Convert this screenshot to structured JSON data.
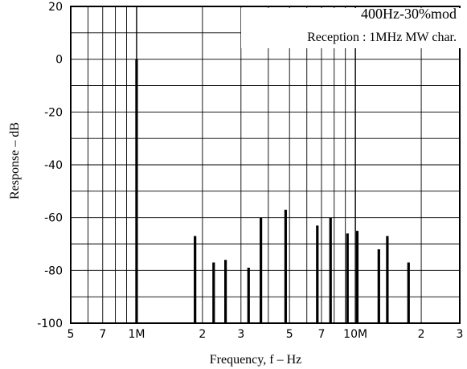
{
  "chart_data": {
    "type": "bar",
    "x_scale": "log",
    "xlabel": "Frequency, f  –  Hz",
    "ylabel": "Response  –  dB",
    "xlim": [
      500000,
      30000000
    ],
    "ylim": [
      -100,
      20
    ],
    "grid": true,
    "x_tick_labels": [
      {
        "x": 500000,
        "label": "5"
      },
      {
        "x": 700000,
        "label": "7"
      },
      {
        "x": 1000000,
        "label": "1M"
      },
      {
        "x": 2000000,
        "label": "2"
      },
      {
        "x": 3000000,
        "label": "3"
      },
      {
        "x": 5000000,
        "label": "5"
      },
      {
        "x": 7000000,
        "label": "7"
      },
      {
        "x": 10000000,
        "label": "10M"
      },
      {
        "x": 20000000,
        "label": "2"
      },
      {
        "x": 30000000,
        "label": "3"
      }
    ],
    "y_ticks": [
      20,
      0,
      -20,
      -40,
      -60,
      -80,
      -100
    ],
    "annotations": [
      "400Hz-30%mod",
      "Reception : 1MHz MW char."
    ],
    "series": [
      {
        "points": [
          {
            "x": 1000000,
            "y": 0
          },
          {
            "x": 1850000,
            "y": -67
          },
          {
            "x": 2250000,
            "y": -77
          },
          {
            "x": 2550000,
            "y": -76
          },
          {
            "x": 3250000,
            "y": -79
          },
          {
            "x": 3700000,
            "y": -60
          },
          {
            "x": 4800000,
            "y": -57
          },
          {
            "x": 6700000,
            "y": -63
          },
          {
            "x": 7700000,
            "y": -60
          },
          {
            "x": 9200000,
            "y": -66
          },
          {
            "x": 10200000,
            "y": -65
          },
          {
            "x": 12800000,
            "y": -72
          },
          {
            "x": 14000000,
            "y": -67
          },
          {
            "x": 17500000,
            "y": -77
          }
        ]
      }
    ]
  }
}
